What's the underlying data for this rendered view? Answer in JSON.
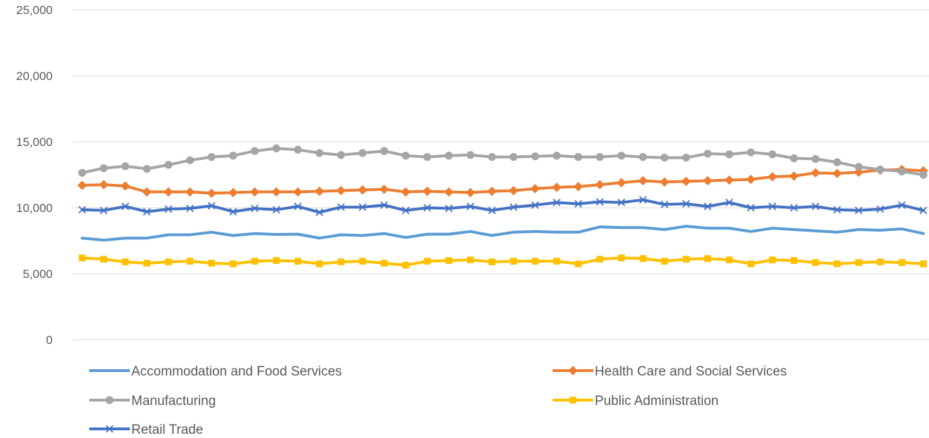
{
  "chart_data": {
    "type": "line",
    "title": "",
    "xlabel": "",
    "ylabel": "",
    "ylim": [
      0,
      25000
    ],
    "yticks": [
      "0",
      "5,000",
      "10,000",
      "15,000",
      "20,000",
      "25,000"
    ],
    "ytick_values": [
      0,
      5000,
      10000,
      15000,
      20000,
      25000
    ],
    "grid": true,
    "legend_position": "bottom",
    "series": [
      {
        "name": "Accommodation and Food Services",
        "color": "#5B9BD5",
        "marker": "none",
        "values": [
          7700,
          7550,
          7700,
          7700,
          7950,
          7950,
          8150,
          7900,
          8050,
          7980,
          8000,
          7700,
          7950,
          7900,
          8050,
          7750,
          8000,
          8000,
          8200,
          7900,
          8150,
          8200,
          8150,
          8150,
          8550,
          8500,
          8500,
          8350,
          8600,
          8450,
          8450,
          8200,
          8450,
          8350,
          8250,
          8150,
          8350,
          8300,
          8400,
          8050
        ]
      },
      {
        "name": "Health Care and Social Services",
        "color": "#ED7D31",
        "marker": "diamond",
        "values": [
          11700,
          11750,
          11650,
          11200,
          11200,
          11200,
          11100,
          11150,
          11200,
          11200,
          11200,
          11250,
          11300,
          11350,
          11400,
          11200,
          11250,
          11200,
          11150,
          11250,
          11300,
          11450,
          11550,
          11600,
          11750,
          11900,
          12050,
          11950,
          12000,
          12050,
          12100,
          12150,
          12350,
          12400,
          12650,
          12600,
          12700,
          12850,
          12900,
          12800
        ]
      },
      {
        "name": "Manufacturing",
        "color": "#A5A5A5",
        "marker": "circle",
        "values": [
          12650,
          13000,
          13150,
          12950,
          13250,
          13600,
          13850,
          13950,
          14300,
          14500,
          14400,
          14150,
          14000,
          14150,
          14300,
          13950,
          13850,
          13950,
          14000,
          13850,
          13850,
          13900,
          13950,
          13850,
          13850,
          13950,
          13850,
          13800,
          13800,
          14100,
          14050,
          14200,
          14050,
          13750,
          13700,
          13450,
          13100,
          12900,
          12750,
          12500
        ]
      },
      {
        "name": "Public Administration",
        "color": "#FFC000",
        "marker": "square",
        "values": [
          6200,
          6100,
          5900,
          5800,
          5900,
          5950,
          5800,
          5750,
          5950,
          6000,
          5950,
          5750,
          5900,
          5950,
          5800,
          5650,
          5950,
          6000,
          6050,
          5900,
          5950,
          5950,
          5950,
          5750,
          6100,
          6200,
          6150,
          5950,
          6100,
          6150,
          6050,
          5750,
          6050,
          6000,
          5850,
          5750,
          5850,
          5900,
          5850,
          5750
        ]
      },
      {
        "name": "Retail Trade",
        "color": "#4472C4",
        "marker": "x",
        "values": [
          9850,
          9800,
          10100,
          9700,
          9900,
          9950,
          10150,
          9700,
          9950,
          9850,
          10100,
          9650,
          10050,
          10050,
          10200,
          9800,
          10000,
          9950,
          10100,
          9800,
          10050,
          10200,
          10400,
          10300,
          10450,
          10400,
          10600,
          10250,
          10300,
          10100,
          10400,
          10000,
          10100,
          10000,
          10100,
          9850,
          9800,
          9900,
          10200,
          9800
        ]
      }
    ]
  }
}
